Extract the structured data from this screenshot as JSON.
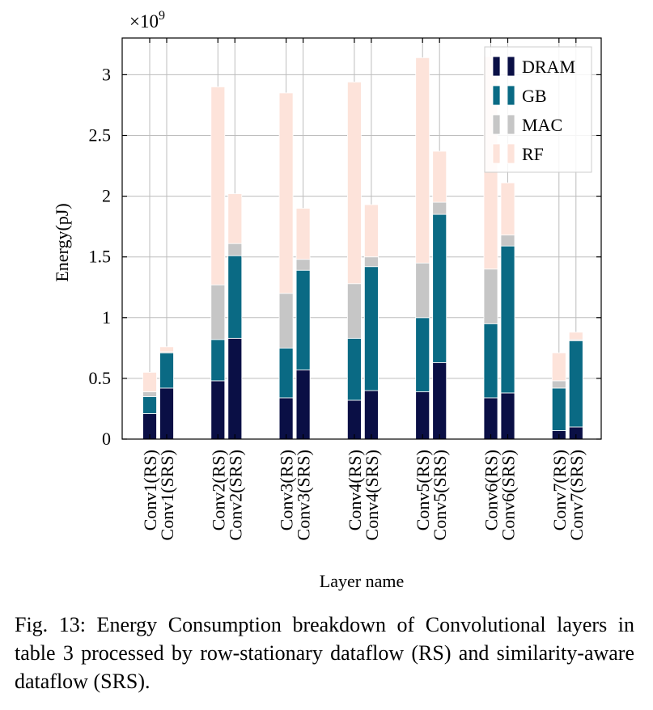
{
  "chart_data": {
    "type": "bar",
    "stacked": true,
    "ylabel": "Energy(pJ)",
    "xlabel": "Layer name",
    "y_multiplier": "×10",
    "y_multiplier_exp": "9",
    "ylim": [
      0,
      3.3
    ],
    "yticks": [
      0,
      0.5,
      1,
      1.5,
      2,
      2.5,
      3
    ],
    "ytick_labels": [
      "0",
      "0.5",
      "1",
      "1.5",
      "2",
      "2.5",
      "3"
    ],
    "grid": true,
    "legend_position": "top-right",
    "categories": [
      "Conv1(RS)",
      "Conv1(SRS)",
      "Conv2(RS)",
      "Conv2(SRS)",
      "Conv3(RS)",
      "Conv3(SRS)",
      "Conv4(RS)",
      "Conv4(SRS)",
      "Conv5(RS)",
      "Conv5(SRS)",
      "Conv6(RS)",
      "Conv6(SRS)",
      "Conv7(RS)",
      "Conv7(SRS)"
    ],
    "series": [
      {
        "name": "DRAM",
        "color": "#0a0f45",
        "values": [
          0.21,
          0.42,
          0.48,
          0.83,
          0.34,
          0.57,
          0.32,
          0.4,
          0.39,
          0.63,
          0.34,
          0.38,
          0.07,
          0.1
        ]
      },
      {
        "name": "GB",
        "color": "#0a6a84",
        "values": [
          0.14,
          0.29,
          0.34,
          0.68,
          0.41,
          0.82,
          0.51,
          1.02,
          0.61,
          1.22,
          0.61,
          1.21,
          0.35,
          0.71
        ]
      },
      {
        "name": "MAC",
        "color": "#c6c6c6",
        "values": [
          0.04,
          0.01,
          0.45,
          0.1,
          0.45,
          0.09,
          0.45,
          0.08,
          0.45,
          0.1,
          0.45,
          0.09,
          0.06,
          0.01
        ]
      },
      {
        "name": "RF",
        "color": "#fde3da",
        "values": [
          0.16,
          0.04,
          1.63,
          0.41,
          1.65,
          0.42,
          1.66,
          0.43,
          1.69,
          0.42,
          1.75,
          0.43,
          0.23,
          0.06
        ]
      }
    ]
  },
  "caption": "Fig. 13: Energy Consumption breakdown of Convolutional layers in table 3 processed by row-stationary dataflow (RS) and similarity-aware dataflow (SRS)."
}
